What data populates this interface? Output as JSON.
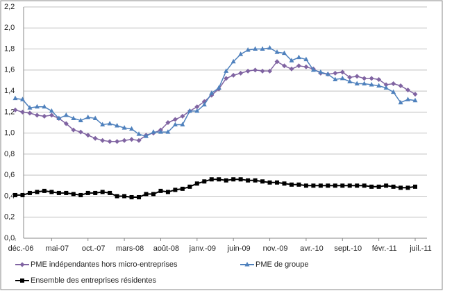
{
  "chart_data": {
    "type": "line",
    "categories": [
      "déc.-06",
      null,
      null,
      null,
      null,
      "mai-07",
      null,
      null,
      null,
      null,
      "oct.-07",
      null,
      null,
      null,
      null,
      "mars-08",
      null,
      null,
      null,
      null,
      "août-08",
      null,
      null,
      null,
      null,
      "janv.-09",
      null,
      null,
      null,
      null,
      "juin-09",
      null,
      null,
      null,
      null,
      "nov.-09",
      null,
      null,
      null,
      null,
      "avr.-10",
      null,
      null,
      null,
      null,
      "sept.-10",
      null,
      null,
      null,
      null,
      "févr.-11",
      null,
      null,
      null,
      null,
      "juil.-11"
    ],
    "series": [
      {
        "name": "PME indépendantes hors micro-entreprises",
        "color": "#8064a2",
        "marker": "diamond",
        "values": [
          1.22,
          1.2,
          1.19,
          1.17,
          1.16,
          1.17,
          1.14,
          1.09,
          1.03,
          1.01,
          0.98,
          0.95,
          0.93,
          0.92,
          0.92,
          0.93,
          0.94,
          0.93,
          0.98,
          1.0,
          1.03,
          1.1,
          1.13,
          1.16,
          1.21,
          1.25,
          1.3,
          1.36,
          1.42,
          1.52,
          1.55,
          1.57,
          1.59,
          1.6,
          1.59,
          1.59,
          1.68,
          1.64,
          1.61,
          1.64,
          1.63,
          1.61,
          1.57,
          1.56,
          1.57,
          1.58,
          1.53,
          1.54,
          1.52,
          1.52,
          1.51,
          1.46,
          1.47,
          1.45,
          1.41,
          1.37
        ]
      },
      {
        "name": "PME de groupe",
        "color": "#4f81bd",
        "marker": "triangle",
        "values": [
          1.33,
          1.32,
          1.24,
          1.25,
          1.25,
          1.21,
          1.14,
          1.17,
          1.14,
          1.12,
          1.15,
          1.14,
          1.08,
          1.09,
          1.07,
          1.05,
          1.04,
          0.99,
          0.97,
          1.01,
          1.01,
          1.01,
          1.08,
          1.08,
          1.21,
          1.21,
          1.27,
          1.38,
          1.43,
          1.59,
          1.68,
          1.75,
          1.79,
          1.8,
          1.8,
          1.81,
          1.77,
          1.76,
          1.69,
          1.72,
          1.7,
          1.6,
          1.58,
          1.56,
          1.51,
          1.52,
          1.49,
          1.47,
          1.47,
          1.46,
          1.45,
          1.43,
          1.39,
          1.29,
          1.32,
          1.31
        ]
      },
      {
        "name": "Ensemble des entreprises résidentes",
        "color": "#000000",
        "marker": "square",
        "values": [
          0.41,
          0.41,
          0.43,
          0.44,
          0.45,
          0.44,
          0.43,
          0.43,
          0.42,
          0.41,
          0.43,
          0.43,
          0.44,
          0.43,
          0.4,
          0.4,
          0.39,
          0.39,
          0.42,
          0.42,
          0.45,
          0.44,
          0.46,
          0.47,
          0.49,
          0.52,
          0.54,
          0.56,
          0.56,
          0.55,
          0.56,
          0.56,
          0.55,
          0.55,
          0.54,
          0.53,
          0.53,
          0.52,
          0.51,
          0.51,
          0.5,
          0.5,
          0.5,
          0.5,
          0.5,
          0.5,
          0.5,
          0.5,
          0.5,
          0.49,
          0.49,
          0.5,
          0.49,
          0.48,
          0.48,
          0.49
        ]
      }
    ],
    "ylim": [
      0,
      2.2
    ],
    "yticks": [
      {
        "value": 0,
        "label": "0,0"
      },
      {
        "value": 0.2,
        "label": "0,2"
      },
      {
        "value": 0.4,
        "label": "0,4"
      },
      {
        "value": 0.6,
        "label": "0,6"
      },
      {
        "value": 0.8,
        "label": "0,8"
      },
      {
        "value": 1.0,
        "label": "1,0"
      },
      {
        "value": 1.2,
        "label": "1,2"
      },
      {
        "value": 1.4,
        "label": "1,4"
      },
      {
        "value": 1.6,
        "label": "1,6"
      },
      {
        "value": 1.8,
        "label": "1,8"
      },
      {
        "value": 2.0,
        "label": "2,0"
      },
      {
        "value": 2.2,
        "label": "2,2"
      }
    ],
    "grid": true
  }
}
